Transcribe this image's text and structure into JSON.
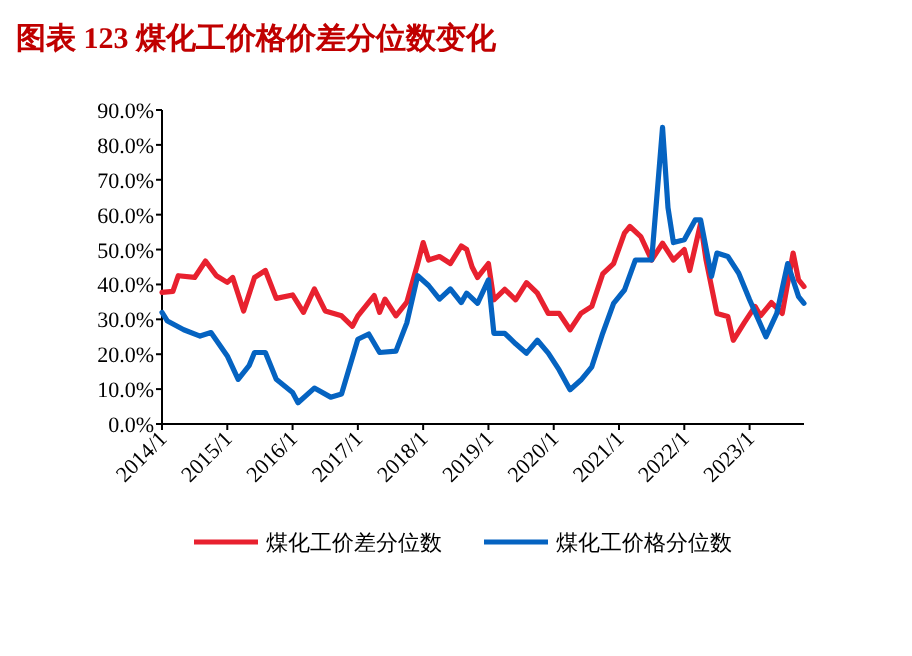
{
  "chart_data": {
    "type": "line",
    "title": "图表 123  煤化工价格价差分位数变化",
    "x": [
      "2014-01",
      "2014-03",
      "2014-04",
      "2014-07",
      "2014-09",
      "2014-11",
      "2015-01",
      "2015-02",
      "2015-04",
      "2015-06",
      "2015-08",
      "2015-10",
      "2016-01",
      "2016-03",
      "2016-05",
      "2016-07",
      "2016-10",
      "2016-12",
      "2017-01",
      "2017-04",
      "2017-05",
      "2017-06",
      "2017-08",
      "2017-10",
      "2017-12",
      "2018-01",
      "2018-02",
      "2018-04",
      "2018-06",
      "2018-08",
      "2018-09",
      "2018-10",
      "2018-11",
      "2019-01",
      "2019-02",
      "2019-04",
      "2019-06",
      "2019-08",
      "2019-10",
      "2019-12",
      "2020-02",
      "2020-04",
      "2020-06",
      "2020-08",
      "2020-10",
      "2020-12",
      "2021-02",
      "2021-03",
      "2021-05",
      "2021-07",
      "2021-09",
      "2021-11",
      "2022-01",
      "2022-02",
      "2022-04",
      "2022-05",
      "2022-07",
      "2022-09",
      "2022-10",
      "2022-12",
      "2023-02",
      "2023-03",
      "2023-05",
      "2023-07",
      "2023-09",
      "2023-10",
      "2023-11"
    ],
    "series": [
      {
        "name": "煤化工价差分位数",
        "color": "#e8212f",
        "values": [
          37.7,
          38,
          42.5,
          42,
          46.7,
          42.5,
          40.6,
          42,
          32.4,
          42,
          44,
          36,
          37,
          32,
          38.7,
          32.4,
          31,
          28,
          31,
          36.8,
          32,
          35.8,
          31,
          34.9,
          46,
          52,
          47,
          48,
          46,
          51,
          50,
          45,
          42,
          46,
          35.6,
          38.6,
          35.6,
          40.5,
          37.5,
          31.7,
          31.7,
          27,
          31.7,
          33.7,
          43,
          46,
          54.7,
          56.6,
          53.7,
          47,
          51.8,
          47,
          50,
          44,
          57.5,
          47,
          31.7,
          30.8,
          24,
          29,
          33.7,
          31,
          34.8,
          31.7,
          49,
          41.3,
          39.4
        ]
      },
      {
        "name": "煤化工价格分位数",
        "color": "#0563c1",
        "x": [
          "2014-01",
          "2014-02",
          "2014-05",
          "2014-08",
          "2014-10",
          "2015-01",
          "2015-03",
          "2015-05",
          "2015-06",
          "2015-08",
          "2015-10",
          "2016-01",
          "2016-02",
          "2016-05",
          "2016-08",
          "2016-10",
          "2017-01",
          "2017-03",
          "2017-05",
          "2017-08",
          "2017-10",
          "2017-12",
          "2018-02",
          "2018-04",
          "2018-06",
          "2018-08",
          "2018-09",
          "2018-11",
          "2019-01",
          "2019-02",
          "2019-04",
          "2019-06",
          "2019-08",
          "2019-10",
          "2019-12",
          "2020-02",
          "2020-04",
          "2020-06",
          "2020-08",
          "2020-10",
          "2020-12",
          "2021-02",
          "2021-04",
          "2021-07",
          "2021-08",
          "2021-09",
          "2021-10",
          "2021-11",
          "2022-01",
          "2022-03",
          "2022-04",
          "2022-06",
          "2022-07",
          "2022-09",
          "2022-11",
          "2023-01",
          "2023-04",
          "2023-06",
          "2023-08",
          "2023-10",
          "2023-11"
        ],
        "values": [
          32,
          29.5,
          27,
          25.2,
          26.2,
          19.5,
          12.8,
          16.7,
          20.5,
          20.5,
          12.8,
          9,
          6.1,
          10.3,
          7.7,
          8.6,
          24.3,
          25.8,
          20.5,
          20.9,
          29,
          42.5,
          39.7,
          35.8,
          38.7,
          34.8,
          37.5,
          34.6,
          41.3,
          26,
          26,
          23,
          20.3,
          24,
          20.3,
          15.5,
          9.8,
          12.6,
          16.4,
          26,
          34.6,
          38.4,
          47,
          47,
          66,
          85,
          62,
          52,
          52.8,
          58.5,
          58.5,
          42.3,
          49,
          48,
          43.2,
          35.6,
          25,
          31.7,
          46,
          36.5,
          34.6
        ]
      }
    ],
    "xlim": [
      "2014-01",
      "2023-11"
    ],
    "xticks": [
      {
        "value": "2014-01",
        "label": "2014/1"
      },
      {
        "value": "2015-01",
        "label": "2015/1"
      },
      {
        "value": "2016-01",
        "label": "2016/1"
      },
      {
        "value": "2017-01",
        "label": "2017/1"
      },
      {
        "value": "2018-01",
        "label": "2018/1"
      },
      {
        "value": "2019-01",
        "label": "2019/1"
      },
      {
        "value": "2020-01",
        "label": "2020/1"
      },
      {
        "value": "2021-01",
        "label": "2021/1"
      },
      {
        "value": "2022-01",
        "label": "2022/1"
      },
      {
        "value": "2023-01",
        "label": "2023/1"
      }
    ],
    "ylim": [
      0,
      90
    ],
    "yticks": [
      {
        "value": 0,
        "label": "0.0%"
      },
      {
        "value": 10,
        "label": "10.0%"
      },
      {
        "value": 20,
        "label": "20.0%"
      },
      {
        "value": 30,
        "label": "30.0%"
      },
      {
        "value": 40,
        "label": "40.0%"
      },
      {
        "value": 50,
        "label": "50.0%"
      },
      {
        "value": 60,
        "label": "60.0%"
      },
      {
        "value": 70,
        "label": "70.0%"
      },
      {
        "value": 80,
        "label": "80.0%"
      },
      {
        "value": 90,
        "label": "90.0%"
      }
    ],
    "legend": "bottom",
    "grid": false,
    "line_style": "solid",
    "marker": "none"
  }
}
